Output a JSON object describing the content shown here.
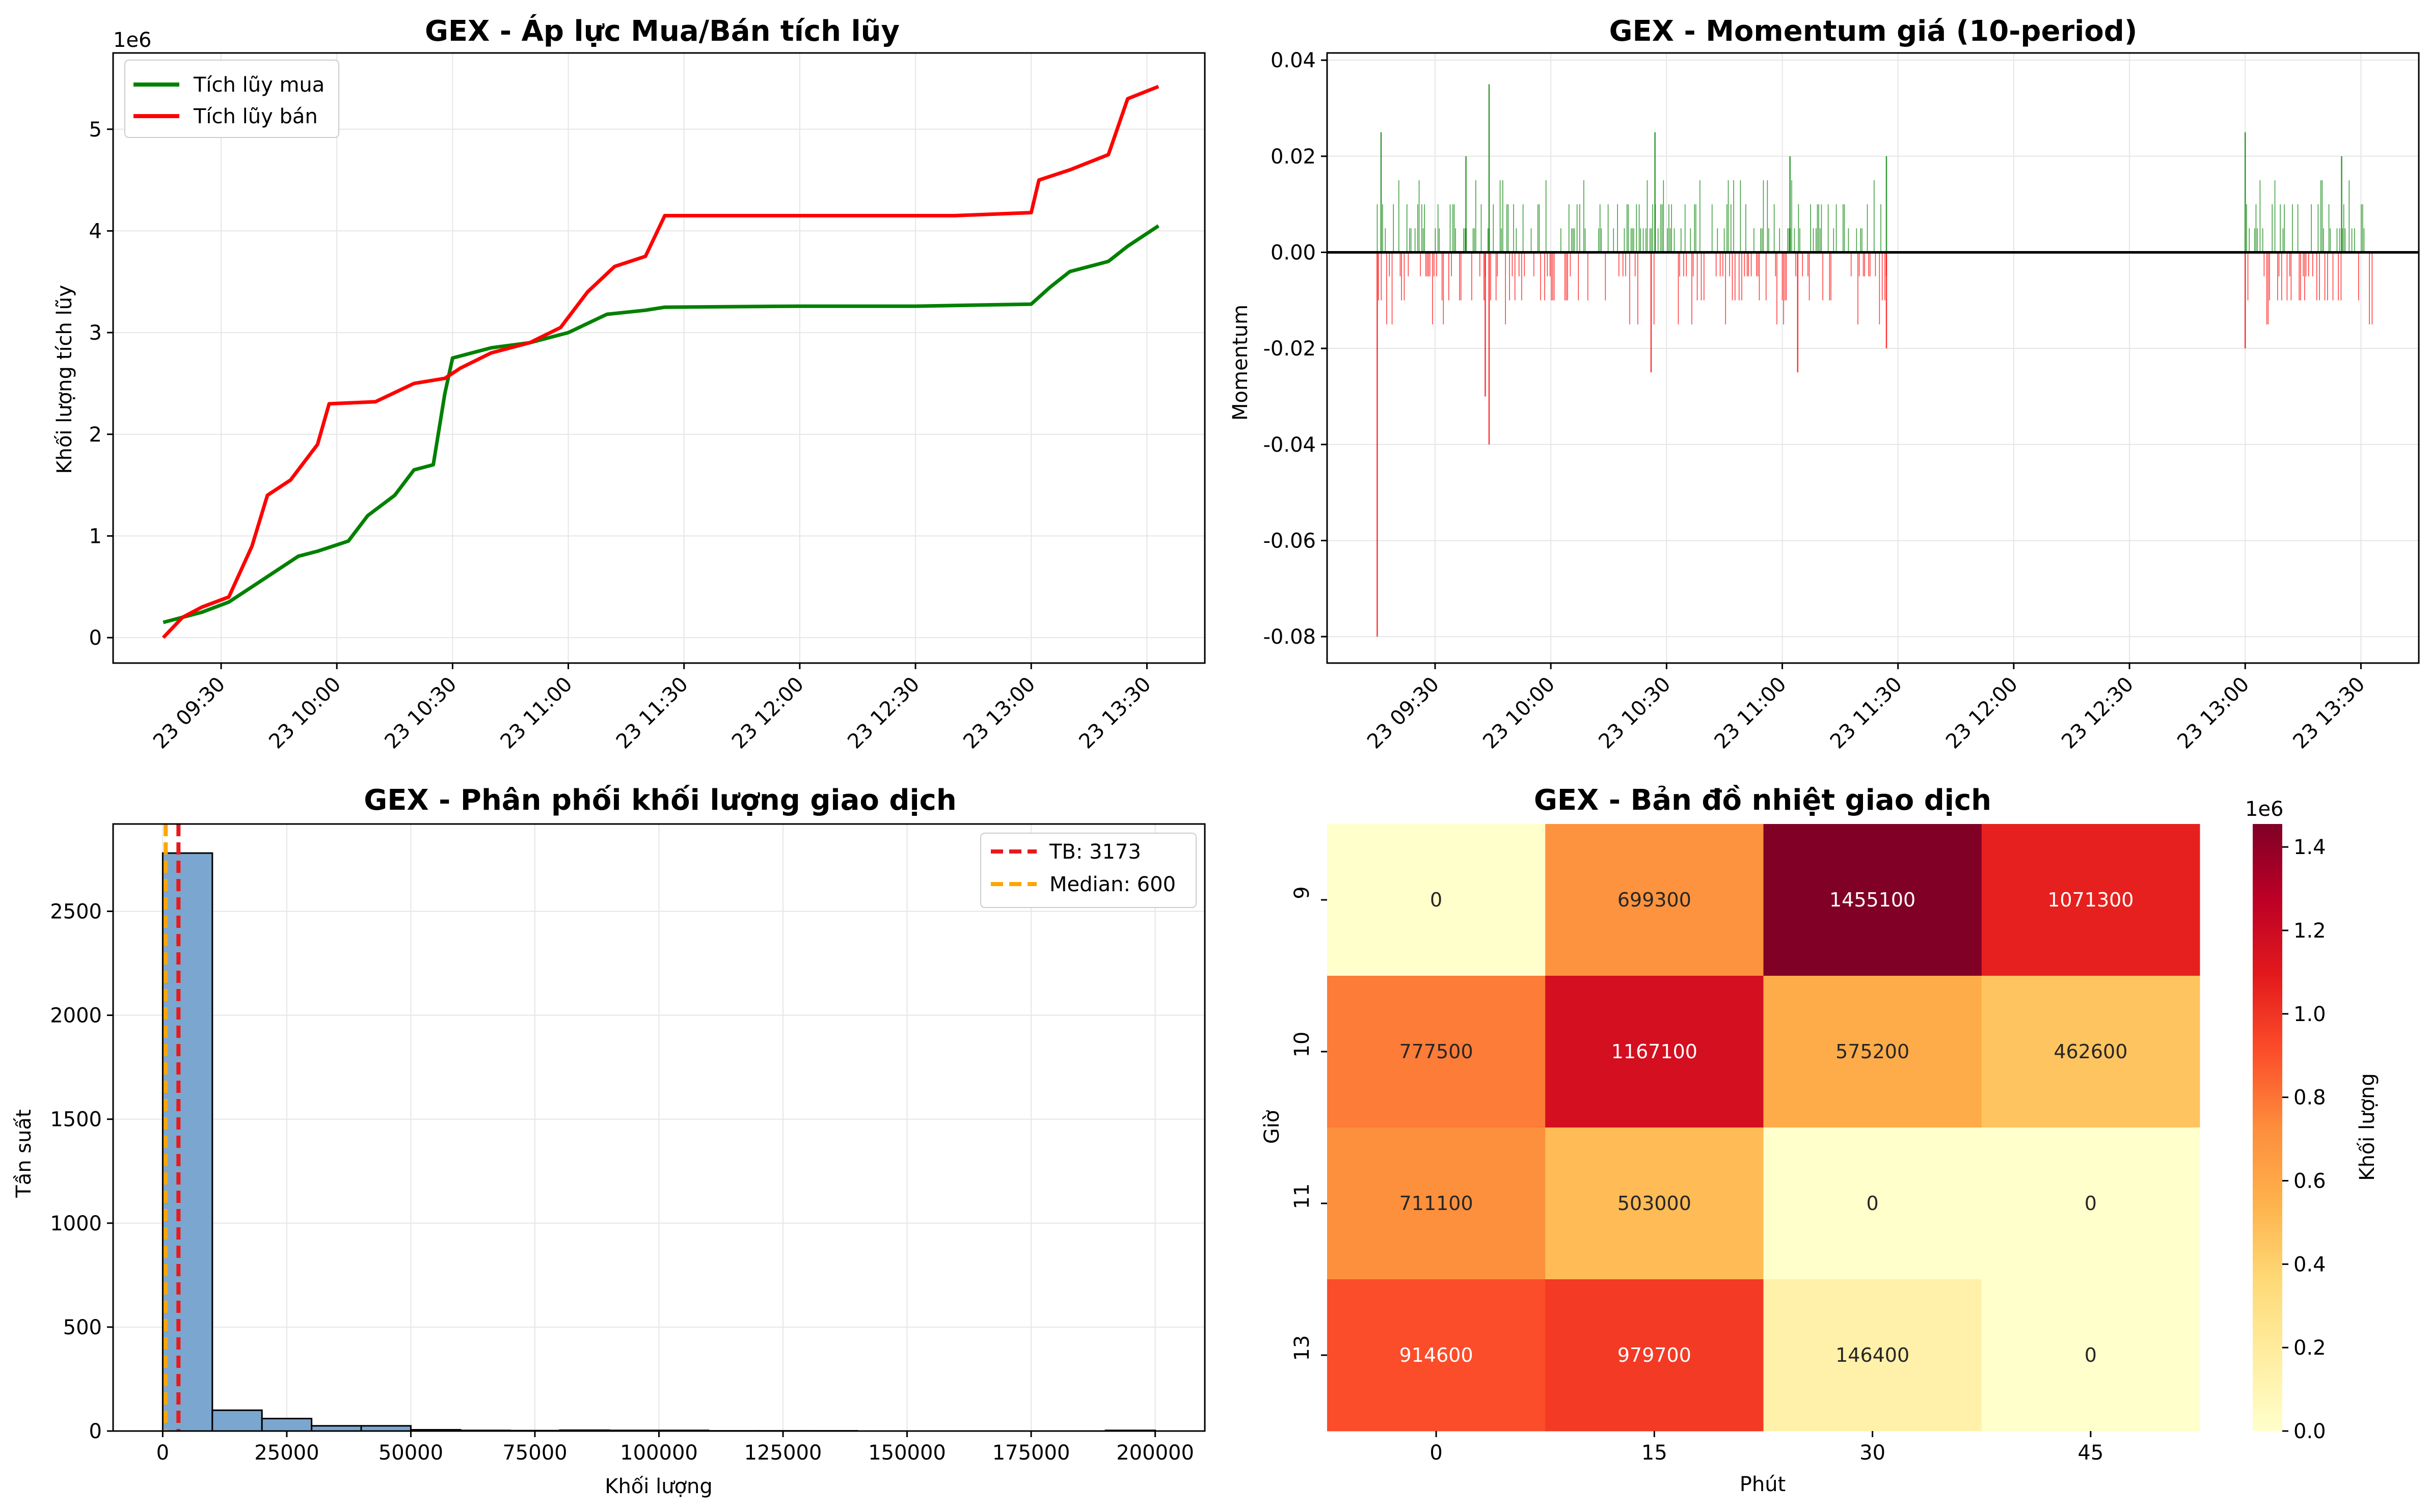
{
  "charts": {
    "cumulative": {
      "title": "GEX - Áp lực Mua/Bán tích lũy",
      "ylabel": "Khối lượng tích lũy",
      "sci_label": "1e6",
      "yticks": [
        "0",
        "1",
        "2",
        "3",
        "4",
        "5"
      ],
      "xticks": [
        "23 09:30",
        "23 10:00",
        "23 10:30",
        "23 11:00",
        "23 11:30",
        "23 12:00",
        "23 12:30",
        "23 13:00",
        "23 13:30"
      ],
      "legend": [
        "Tích lũy mua",
        "Tích lũy bán"
      ]
    },
    "momentum": {
      "title": "GEX - Momentum giá (10-period)",
      "ylabel": "Momentum",
      "yticks": [
        "0.04",
        "0.02",
        "0.00",
        "-0.02",
        "-0.04",
        "-0.06",
        "-0.08"
      ],
      "xticks": [
        "23 09:30",
        "23 10:00",
        "23 10:30",
        "23 11:00",
        "23 11:30",
        "23 12:00",
        "23 12:30",
        "23 13:00",
        "23 13:30"
      ]
    },
    "histogram": {
      "title": "GEX - Phân phối khối lượng giao dịch",
      "ylabel": "Tần suất",
      "xlabel": "Khối lượng",
      "yticks": [
        "0",
        "500",
        "1000",
        "1500",
        "2000",
        "2500"
      ],
      "xticks": [
        "0",
        "25000",
        "50000",
        "75000",
        "100000",
        "125000",
        "150000",
        "175000",
        "200000"
      ],
      "legend": [
        "TB: 3173",
        "Median: 600"
      ]
    },
    "heatmap": {
      "title": "GEX - Bản đồ nhiệt giao dịch",
      "ylabel": "Giờ",
      "xlabel": "Phút",
      "xticks": [
        "0",
        "15",
        "30",
        "45"
      ],
      "yticks": [
        "9",
        "10",
        "11",
        "13"
      ],
      "cbar_label": "Khối lượng",
      "cbar_sci": "1e6",
      "cbar_ticks": [
        "0.0",
        "0.2",
        "0.4",
        "0.6",
        "0.8",
        "1.0",
        "1.2",
        "1.4"
      ]
    }
  },
  "colors": {
    "buy": "#008000",
    "sell": "#ff0000",
    "hist_bar": "#7ba6cf",
    "mean_line": "#e8191b",
    "median_line": "#ffa500",
    "heatmap_cmap": "YlOrRd"
  },
  "chart_data": [
    {
      "type": "line",
      "title": "GEX - Áp lực Mua/Bán tích lũy",
      "ylabel": "Khối lượng tích lũy",
      "y_scale_note": "1e6",
      "ylim": [
        -0.25,
        5.75
      ],
      "series": [
        {
          "name": "Tích lũy mua",
          "x": [
            "09:15",
            "09:25",
            "09:32",
            "09:40",
            "09:50",
            "09:55",
            "10:03",
            "10:08",
            "10:15",
            "10:20",
            "10:25",
            "10:28",
            "10:30",
            "10:40",
            "10:50",
            "11:00",
            "11:10",
            "11:20",
            "11:25",
            "12:00",
            "12:30",
            "13:00",
            "13:05",
            "13:10",
            "13:20",
            "13:25",
            "13:33"
          ],
          "y": [
            0.15,
            0.25,
            0.35,
            0.55,
            0.8,
            0.85,
            0.95,
            1.2,
            1.4,
            1.65,
            1.7,
            2.4,
            2.75,
            2.85,
            2.9,
            3.0,
            3.18,
            3.22,
            3.25,
            3.26,
            3.26,
            3.28,
            3.45,
            3.6,
            3.7,
            3.85,
            4.05
          ]
        },
        {
          "name": "Tích lũy bán",
          "x": [
            "09:15",
            "09:20",
            "09:25",
            "09:32",
            "09:38",
            "09:42",
            "09:48",
            "09:55",
            "09:58",
            "10:10",
            "10:20",
            "10:28",
            "10:32",
            "10:40",
            "10:50",
            "10:58",
            "11:05",
            "11:12",
            "11:20",
            "11:25",
            "12:00",
            "12:40",
            "13:00",
            "13:02",
            "13:10",
            "13:20",
            "13:25",
            "13:33"
          ],
          "y": [
            0.0,
            0.2,
            0.3,
            0.4,
            0.9,
            1.4,
            1.55,
            1.9,
            2.3,
            2.32,
            2.5,
            2.55,
            2.65,
            2.8,
            2.9,
            3.05,
            3.4,
            3.65,
            3.75,
            4.15,
            4.15,
            4.15,
            4.18,
            4.5,
            4.6,
            4.75,
            5.3,
            5.42
          ]
        }
      ]
    },
    {
      "type": "bar",
      "title": "GEX - Momentum giá (10-period)",
      "ylabel": "Momentum",
      "ylim": [
        -0.0855,
        0.0415
      ],
      "note": "Dense thin bars; green for positive, red for negative. Representative peaks listed.",
      "peaks": [
        {
          "x": "09:15",
          "y": -0.08
        },
        {
          "x": "09:16",
          "y": 0.025
        },
        {
          "x": "09:38",
          "y": 0.02
        },
        {
          "x": "09:44",
          "y": 0.035
        },
        {
          "x": "09:44",
          "y": -0.04
        },
        {
          "x": "09:43",
          "y": -0.03
        },
        {
          "x": "10:27",
          "y": 0.025
        },
        {
          "x": "10:26",
          "y": -0.025
        },
        {
          "x": "11:02",
          "y": 0.02
        },
        {
          "x": "11:04",
          "y": -0.025
        },
        {
          "x": "11:27",
          "y": 0.02
        },
        {
          "x": "11:27",
          "y": -0.02
        },
        {
          "x": "13:00",
          "y": 0.025
        },
        {
          "x": "13:00",
          "y": -0.02
        },
        {
          "x": "13:25",
          "y": 0.02
        }
      ]
    },
    {
      "type": "bar",
      "title": "GEX - Phân phối khối lượng giao dịch",
      "xlabel": "Khối lượng",
      "ylabel": "Tần suất",
      "xlim": [
        -10000,
        210000
      ],
      "ylim": [
        0,
        2920
      ],
      "bin_width": 10000,
      "bins_start": [
        0,
        10000,
        20000,
        30000,
        40000,
        50000,
        60000,
        70000,
        80000,
        90000,
        100000,
        110000,
        120000,
        130000,
        140000,
        150000,
        160000,
        170000,
        180000,
        190000
      ],
      "values": [
        2780,
        100,
        60,
        25,
        25,
        6,
        3,
        2,
        4,
        3,
        3,
        1,
        1,
        1,
        0,
        0,
        0,
        0,
        0,
        3
      ],
      "mean": 3173,
      "median": 600
    },
    {
      "type": "heatmap",
      "title": "GEX - Bản đồ nhiệt giao dịch",
      "xlabel": "Phút",
      "ylabel": "Giờ",
      "x": [
        "0",
        "15",
        "30",
        "45"
      ],
      "y": [
        "9",
        "10",
        "11",
        "13"
      ],
      "values": [
        [
          0,
          699300,
          1455100,
          1071300
        ],
        [
          777500,
          1167100,
          575200,
          462600
        ],
        [
          711100,
          503000,
          0,
          0
        ],
        [
          914600,
          979700,
          146400,
          0
        ]
      ],
      "vmin": 0,
      "vmax": 1455100,
      "colorbar_label": "Khối lượng"
    }
  ]
}
